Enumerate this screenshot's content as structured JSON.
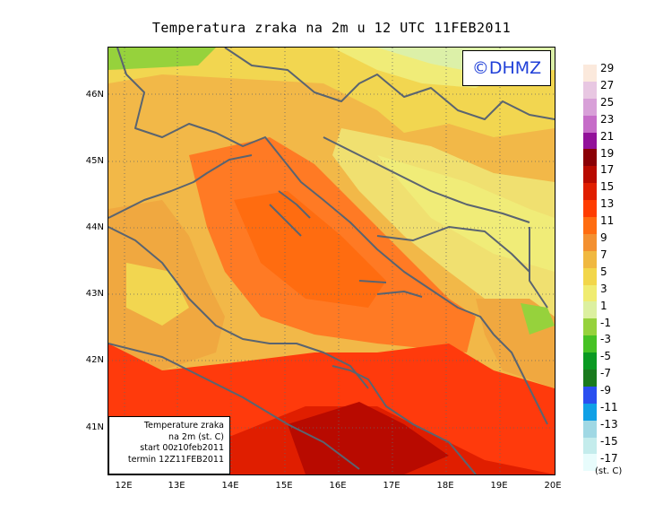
{
  "title": "Temperatura zraka na 2m u 12 UTC 11FEB2011",
  "watermark": "©DHMZ",
  "info": {
    "line1": "Temperature zraka",
    "line2": "na 2m (st. C)",
    "line3": "start 00z10feb2011",
    "line4": "termin 12Z11FEB2011"
  },
  "lat_labels": [
    "46N",
    "45N",
    "44N",
    "43N",
    "42N",
    "41N"
  ],
  "lon_labels": [
    "12E",
    "13E",
    "14E",
    "15E",
    "16E",
    "17E",
    "18E",
    "19E",
    "20E"
  ],
  "legend": {
    "unit": "(st. C)",
    "labels": [
      "29",
      "27",
      "25",
      "23",
      "21",
      "19",
      "17",
      "15",
      "13",
      "11",
      "9",
      "7",
      "5",
      "3",
      "1",
      "-1",
      "-3",
      "-5",
      "-7",
      "-9",
      "-11",
      "-13",
      "-15",
      "-17"
    ],
    "colors": [
      "#fbe9dc",
      "#e8c7e2",
      "#d8a0d8",
      "#c66cc8",
      "#92119a",
      "#8a0006",
      "#b80a00",
      "#e01e00",
      "#ff3c00",
      "#ff6c10",
      "#f39030",
      "#f0b840",
      "#f2d64a",
      "#f0ec70",
      "#dcf0a0",
      "#96d23c",
      "#46c224",
      "#0a9a22",
      "#1a7a1e",
      "#2a4ff0",
      "#10a0e6",
      "#a0d8e4",
      "#c4ecec",
      "#e8fcfc"
    ]
  },
  "map_colors": {
    "sea_warm": "#ff7a24",
    "sea_hot": "#ff3a0c",
    "sea_hottest": "#cc1a08",
    "land_mild": "#f2d650",
    "land_cool": "#f0ec78",
    "land_warm": "#f0a840",
    "land_cold": "#dcf0a8",
    "coast": "#5a6470"
  }
}
